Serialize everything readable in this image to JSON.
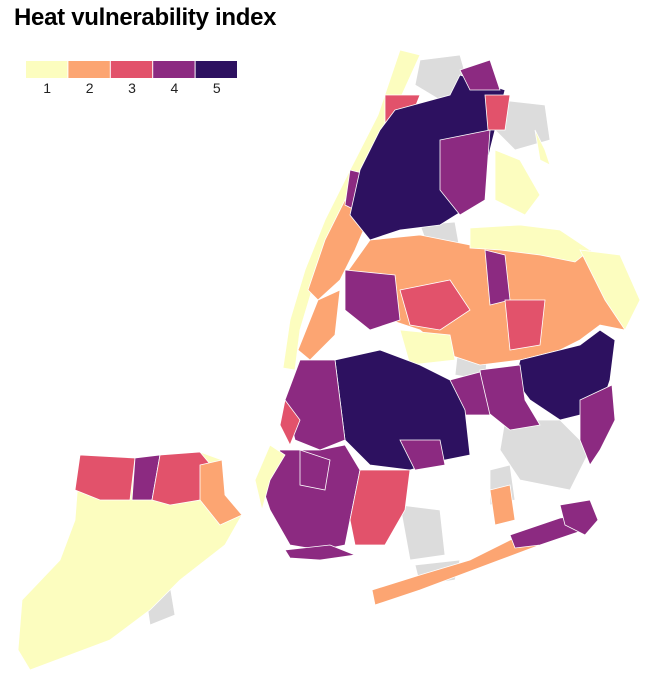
{
  "title": "Heat vulnerability index",
  "legend": [
    {
      "label": 1,
      "color": "#fcfdbf"
    },
    {
      "label": 2,
      "color": "#fca572"
    },
    {
      "label": 3,
      "color": "#e2526b"
    },
    {
      "label": 4,
      "color": "#8c2a81"
    },
    {
      "label": 5,
      "color": "#2d1160"
    }
  ]
}
